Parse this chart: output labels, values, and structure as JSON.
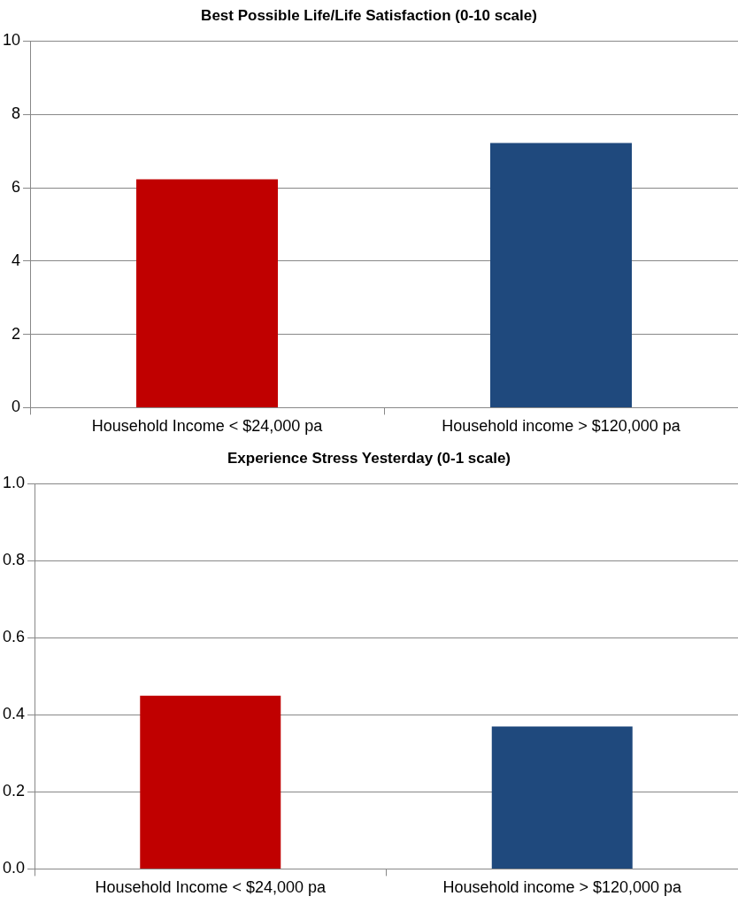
{
  "chart_data": [
    {
      "type": "bar",
      "title": "Best Possible Life/Life Satisfaction (0-10 scale)",
      "categories": [
        "Household Income < $24,000 pa",
        "Household income > $120,000 pa"
      ],
      "values": [
        6.23,
        7.22
      ],
      "colors": [
        "#c00000",
        "#1f497d"
      ],
      "ylim": [
        0,
        10
      ],
      "yticks": [
        0,
        2,
        4,
        6,
        8,
        10
      ],
      "grid": "y",
      "legend": false
    },
    {
      "type": "bar",
      "title": "Experience Stress Yesterday (0-1 scale)",
      "categories": [
        "Household Income < $24,000 pa",
        "Household income > $120,000 pa"
      ],
      "values": [
        0.45,
        0.37
      ],
      "colors": [
        "#c00000",
        "#1f497d"
      ],
      "ylim": [
        0,
        1
      ],
      "yticks": [
        {
          "value": 0,
          "label": "0.0"
        },
        {
          "value": 0.2,
          "label": "0.2"
        },
        {
          "value": 0.4,
          "label": "0.4"
        },
        {
          "value": 0.6,
          "label": "0.6"
        },
        {
          "value": 0.8,
          "label": "0.8"
        },
        {
          "value": 1,
          "label": "1.0"
        }
      ],
      "grid": "y",
      "legend": false
    }
  ]
}
